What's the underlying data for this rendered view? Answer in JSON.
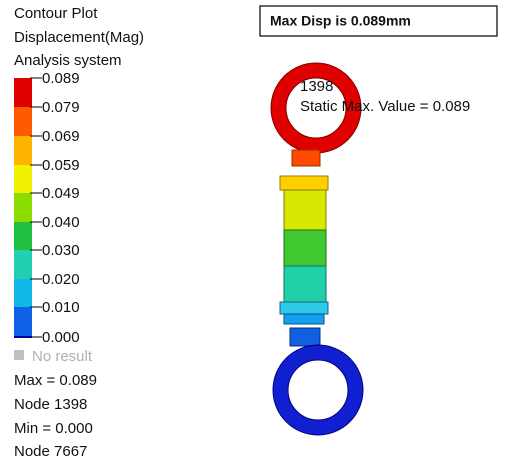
{
  "legend": {
    "title_lines": [
      "Contour Plot",
      "Displacement(Mag)",
      "Analysis system"
    ],
    "labels": [
      "0.089",
      "0.079",
      "0.069",
      "0.059",
      "0.049",
      "0.040",
      "0.030",
      "0.020",
      "0.010",
      "0.000"
    ],
    "no_result": "No result"
  },
  "stats": [
    "Max = 0.089",
    "Node 1398",
    "Min = 0.000",
    "Node 7667"
  ],
  "note_box": "Max Disp is 0.089mm",
  "probe": {
    "node": "1398",
    "label": "Static Max. Value =  0.089"
  }
}
